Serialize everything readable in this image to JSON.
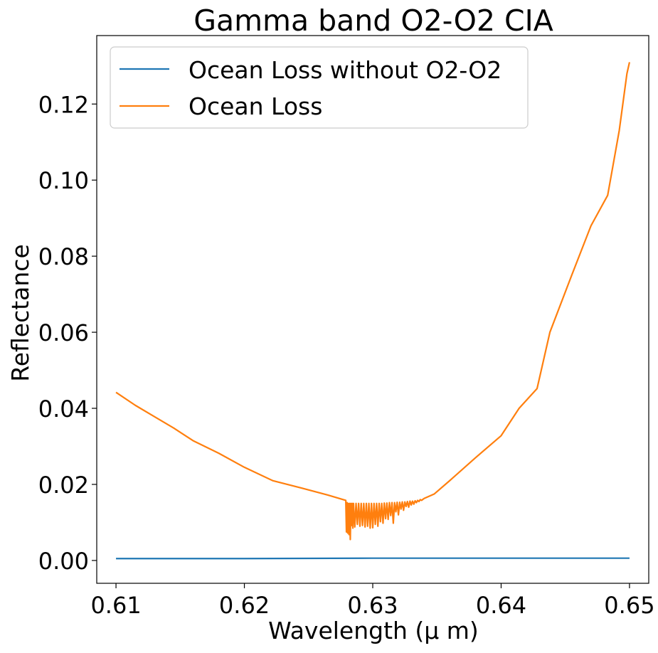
{
  "chart_data": {
    "type": "line",
    "title": "Gamma band O2-O2 CIA",
    "xlabel": "Wavelength (μ m)",
    "ylabel": "Reflectance",
    "xlim": [
      0.6085,
      0.6515
    ],
    "ylim": [
      -0.006,
      0.138
    ],
    "x_ticks": [
      0.61,
      0.62,
      0.63,
      0.64,
      0.65
    ],
    "x_tick_labels": [
      "0.61",
      "0.62",
      "0.63",
      "0.64",
      "0.65"
    ],
    "y_ticks": [
      0.0,
      0.02,
      0.04,
      0.06,
      0.08,
      0.1,
      0.12
    ],
    "y_tick_labels": [
      "0.00",
      "0.02",
      "0.04",
      "0.06",
      "0.08",
      "0.10",
      "0.12"
    ],
    "grid": false,
    "legend_position": "top-left",
    "series": [
      {
        "name": "Ocean Loss without O2-O2",
        "color": "#1f77b4",
        "x": [
          0.61,
          0.62,
          0.63,
          0.64,
          0.65
        ],
        "y": [
          0.0005,
          0.0005,
          0.0006,
          0.0006,
          0.0006
        ]
      },
      {
        "name": "Ocean Loss",
        "color": "#ff7f0e",
        "x": [
          0.61,
          0.6115,
          0.613,
          0.6145,
          0.616,
          0.618,
          0.62,
          0.6222,
          0.6245,
          0.6265,
          0.6279,
          0.62795,
          0.628,
          0.62805,
          0.6281,
          0.62815,
          0.6282,
          0.62825,
          0.6283,
          0.62835,
          0.6284,
          0.62845,
          0.6285,
          0.6286,
          0.6287,
          0.6288,
          0.6289,
          0.629,
          0.6291,
          0.6292,
          0.6293,
          0.6294,
          0.6295,
          0.6296,
          0.6297,
          0.6298,
          0.6299,
          0.63,
          0.6301,
          0.6302,
          0.6303,
          0.6304,
          0.6305,
          0.6306,
          0.6307,
          0.6308,
          0.6309,
          0.631,
          0.6311,
          0.6312,
          0.6313,
          0.6314,
          0.6315,
          0.6316,
          0.6317,
          0.6318,
          0.6319,
          0.632,
          0.6321,
          0.6322,
          0.6323,
          0.6324,
          0.6325,
          0.6326,
          0.6327,
          0.6328,
          0.6329,
          0.633,
          0.6331,
          0.6332,
          0.6333,
          0.6334,
          0.6335,
          0.6336,
          0.6337,
          0.6338,
          0.634,
          0.6348,
          0.636,
          0.638,
          0.64,
          0.6414,
          0.6428,
          0.6438,
          0.6455,
          0.647,
          0.6483,
          0.6492,
          0.6498,
          0.65
        ],
        "y": [
          0.0442,
          0.0408,
          0.0378,
          0.0348,
          0.0315,
          0.0282,
          0.0245,
          0.021,
          0.019,
          0.0172,
          0.0158,
          0.0075,
          0.0152,
          0.0072,
          0.015,
          0.0068,
          0.015,
          0.0055,
          0.015,
          0.0092,
          0.015,
          0.0085,
          0.015,
          0.0088,
          0.015,
          0.0095,
          0.015,
          0.009,
          0.015,
          0.0092,
          0.015,
          0.0088,
          0.015,
          0.009,
          0.015,
          0.0085,
          0.015,
          0.0086,
          0.015,
          0.0095,
          0.015,
          0.009,
          0.015,
          0.0102,
          0.015,
          0.0098,
          0.0151,
          0.011,
          0.0151,
          0.0108,
          0.0152,
          0.0118,
          0.0152,
          0.0098,
          0.0152,
          0.0128,
          0.0153,
          0.012,
          0.0153,
          0.0135,
          0.0154,
          0.0132,
          0.0154,
          0.0142,
          0.0155,
          0.014,
          0.0156,
          0.0146,
          0.0156,
          0.0148,
          0.0157,
          0.0152,
          0.0158,
          0.0155,
          0.016,
          0.0158,
          0.0163,
          0.0175,
          0.021,
          0.027,
          0.0328,
          0.04,
          0.0452,
          0.06,
          0.075,
          0.088,
          0.096,
          0.113,
          0.128,
          0.131
        ]
      }
    ]
  }
}
